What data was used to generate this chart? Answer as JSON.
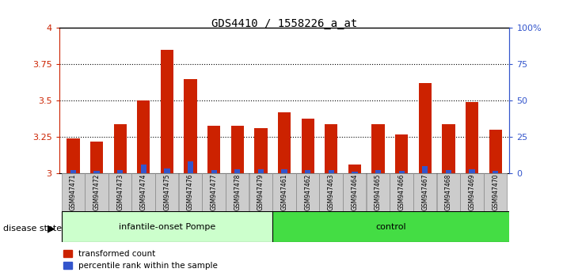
{
  "title": "GDS4410 / 1558226_a_at",
  "samples": [
    "GSM947471",
    "GSM947472",
    "GSM947473",
    "GSM947474",
    "GSM947475",
    "GSM947476",
    "GSM947477",
    "GSM947478",
    "GSM947479",
    "GSM947461",
    "GSM947462",
    "GSM947463",
    "GSM947464",
    "GSM947465",
    "GSM947466",
    "GSM947467",
    "GSM947468",
    "GSM947469",
    "GSM947470"
  ],
  "red_values": [
    3.24,
    3.22,
    3.34,
    3.5,
    3.85,
    3.65,
    3.33,
    3.33,
    3.31,
    3.42,
    3.38,
    3.34,
    3.06,
    3.34,
    3.27,
    3.62,
    3.34,
    3.49,
    3.3
  ],
  "blue_heights": [
    0.025,
    0.02,
    0.022,
    0.06,
    0.035,
    0.085,
    0.022,
    0.03,
    0.03,
    0.03,
    0.025,
    0.022,
    0.015,
    0.022,
    0.018,
    0.052,
    0.022,
    0.028,
    0.018
  ],
  "group1_count": 9,
  "group2_count": 10,
  "group1_label": "infantile-onset Pompe",
  "group2_label": "control",
  "disease_state_label": "disease state",
  "legend_red": "transformed count",
  "legend_blue": "percentile rank within the sample",
  "ymin": 3.0,
  "ymax": 4.0,
  "yticks": [
    3.0,
    3.25,
    3.5,
    3.75,
    4.0
  ],
  "ytick_labels": [
    "3",
    "3.25",
    "3.5",
    "3.75",
    "4"
  ],
  "right_yticks_pct": [
    0,
    25,
    50,
    75,
    100
  ],
  "right_ytick_labels": [
    "0",
    "25",
    "50",
    "75",
    "100%"
  ],
  "bar_color_red": "#cc2200",
  "bar_color_blue": "#3355cc",
  "group1_bg": "#ccffcc",
  "group2_bg": "#44dd44",
  "tick_label_bg": "#cccccc",
  "base_value": 3.0
}
